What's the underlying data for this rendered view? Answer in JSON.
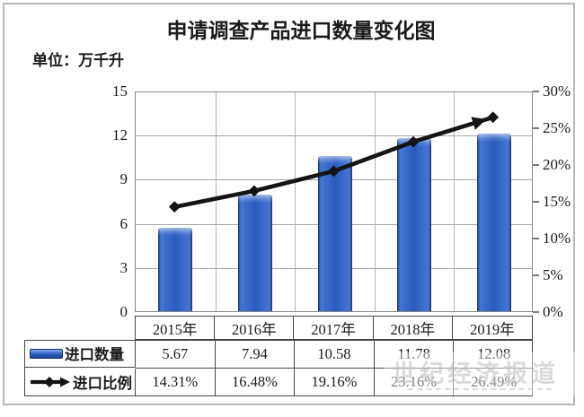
{
  "title": "申请调查产品进口数量变化图",
  "unit_label": "单位：万千升",
  "watermark": {
    "text": "世纪经济报道"
  },
  "chart_data": {
    "type": "combo-bar-line",
    "title": "申请调查产品进口数量变化图",
    "unit": "万千升",
    "categories": [
      "2015年",
      "2016年",
      "2017年",
      "2018年",
      "2019年"
    ],
    "series": [
      {
        "name": "进口数量",
        "type": "bar",
        "axis": "left",
        "values": [
          5.67,
          7.94,
          10.58,
          11.78,
          12.08
        ],
        "color": "#2e63c6"
      },
      {
        "name": "进口比例",
        "type": "line",
        "axis": "right",
        "values": [
          14.31,
          16.48,
          19.16,
          23.16,
          26.49
        ],
        "unit": "%",
        "color": "#141414"
      }
    ],
    "left_axis": {
      "min": 0,
      "max": 15,
      "ticks": [
        "15",
        "12",
        "9",
        "6",
        "3",
        "0"
      ]
    },
    "right_axis": {
      "min": 0,
      "max": 30,
      "ticks": [
        "30%",
        "25%",
        "20%",
        "15%",
        "10%",
        "5%",
        "0%"
      ]
    },
    "grid": true,
    "legend_position": "table-left"
  },
  "table": {
    "rows": [
      {
        "label": "进口数量",
        "values": [
          "5.67",
          "7.94",
          "10.58",
          "11.78",
          "12.08"
        ]
      },
      {
        "label": "进口比例",
        "values": [
          "14.31%",
          "16.48%",
          "19.16%",
          "23.16%",
          "26.49%"
        ]
      }
    ]
  }
}
